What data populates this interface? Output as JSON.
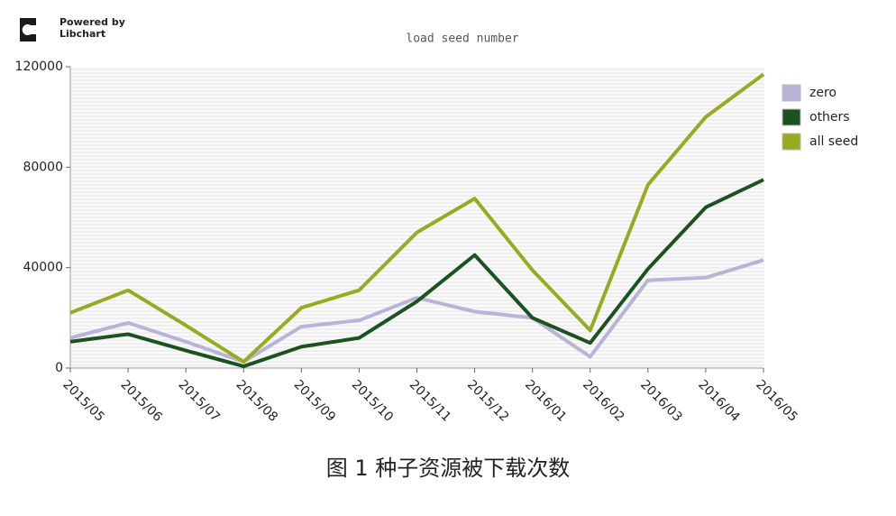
{
  "logo_text": [
    "Powered by",
    "Libchart"
  ],
  "caption": "图 1  种子资源被下载次数",
  "chart_data": {
    "type": "line",
    "title": "load seed number",
    "categories": [
      "2015/05",
      "2015/06",
      "2015/07",
      "2015/08",
      "2015/09",
      "2015/10",
      "2015/11",
      "2015/12",
      "2016/01",
      "2016/02",
      "2016/03",
      "2016/04",
      "2016/05"
    ],
    "series": [
      {
        "name": "zero",
        "color": "#b8b4d8",
        "values": [
          12000,
          18000,
          10500,
          2500,
          16500,
          19000,
          28000,
          22500,
          20000,
          4500,
          35000,
          36000,
          43000
        ]
      },
      {
        "name": "others",
        "color": "#1a5320",
        "values": [
          10500,
          13500,
          7000,
          700,
          8500,
          12000,
          26500,
          45000,
          20000,
          10000,
          39500,
          64000,
          75000
        ]
      },
      {
        "name": "all seed",
        "color": "#98aa20",
        "values": [
          22000,
          31000,
          17000,
          2500,
          24000,
          31000,
          54000,
          67500,
          39000,
          15000,
          73000,
          100000,
          117000
        ]
      }
    ],
    "ylim": [
      0,
      120000
    ],
    "yticks": [
      0,
      40000,
      80000,
      120000
    ],
    "legend": "right"
  }
}
